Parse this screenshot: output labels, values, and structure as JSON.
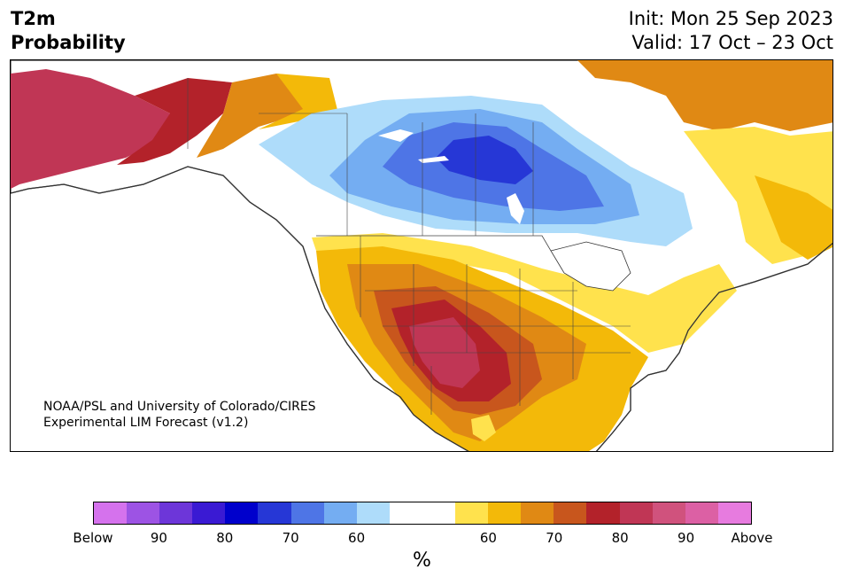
{
  "header": {
    "title_line1": "T2m",
    "title_line2": "Probability",
    "init_text": "Init: Mon 25 Sep 2023",
    "valid_text": "Valid: 17 Oct – 23 Oct"
  },
  "credit": {
    "line1": "NOAA/PSL and University of Colorado/CIRES",
    "line2": "Experimental LIM Forecast (v1.2)"
  },
  "colorbar": {
    "colors": [
      "#d572ed",
      "#9d53e4",
      "#6d36d9",
      "#3a1ad3",
      "#0000cc",
      "#2637d6",
      "#4e75e6",
      "#74adf2",
      "#aedcfa",
      "#ffffff",
      "#ffffff",
      "#ffe24d",
      "#f3b909",
      "#e08914",
      "#c8561d",
      "#b3222a",
      "#c03655",
      "#d0527d",
      "#dc60a4",
      "#e77bdf"
    ],
    "tick_labels": [
      "Below",
      "90",
      "80",
      "70",
      "60",
      "60",
      "70",
      "80",
      "90",
      "Above"
    ],
    "unit_label": "%"
  },
  "map": {
    "ocean_color": "#ffffff",
    "coast_color": "#333333",
    "region_labels": []
  }
}
